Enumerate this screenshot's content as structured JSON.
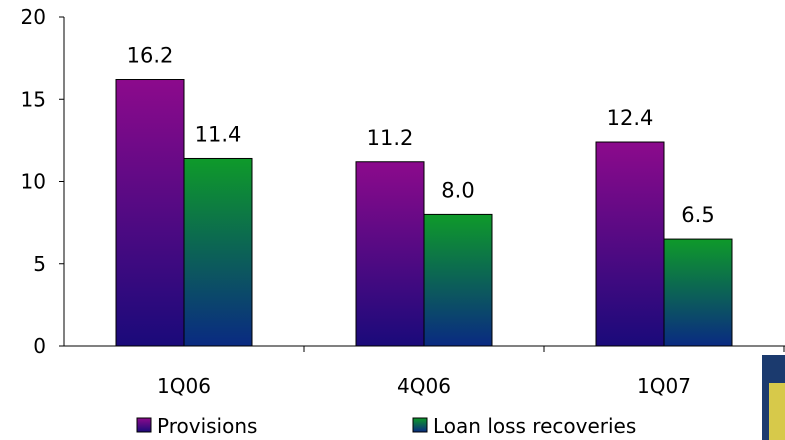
{
  "chart_data": {
    "type": "bar",
    "categories": [
      "1Q06",
      "4Q06",
      "1Q07"
    ],
    "series": [
      {
        "name": "Provisions",
        "values": [
          16.2,
          11.2,
          12.4
        ],
        "labels": [
          "16.2",
          "11.2",
          "12.4"
        ]
      },
      {
        "name": "Loan loss recoveries",
        "values": [
          11.4,
          8.0,
          6.5
        ],
        "labels": [
          "11.4",
          "8.0",
          "6.5"
        ]
      }
    ],
    "yticks": [
      "0",
      "5",
      "10",
      "15",
      "20"
    ],
    "ylim": [
      0,
      20
    ],
    "grid": false,
    "legend_position": "bottom",
    "colors": {
      "provisions_top": "#8c0a8c",
      "provisions_bottom": "#1a0a7a",
      "recoveries_top": "#0e9a2a",
      "recoveries_bottom": "#0a2a82",
      "axis": "#000000"
    }
  }
}
